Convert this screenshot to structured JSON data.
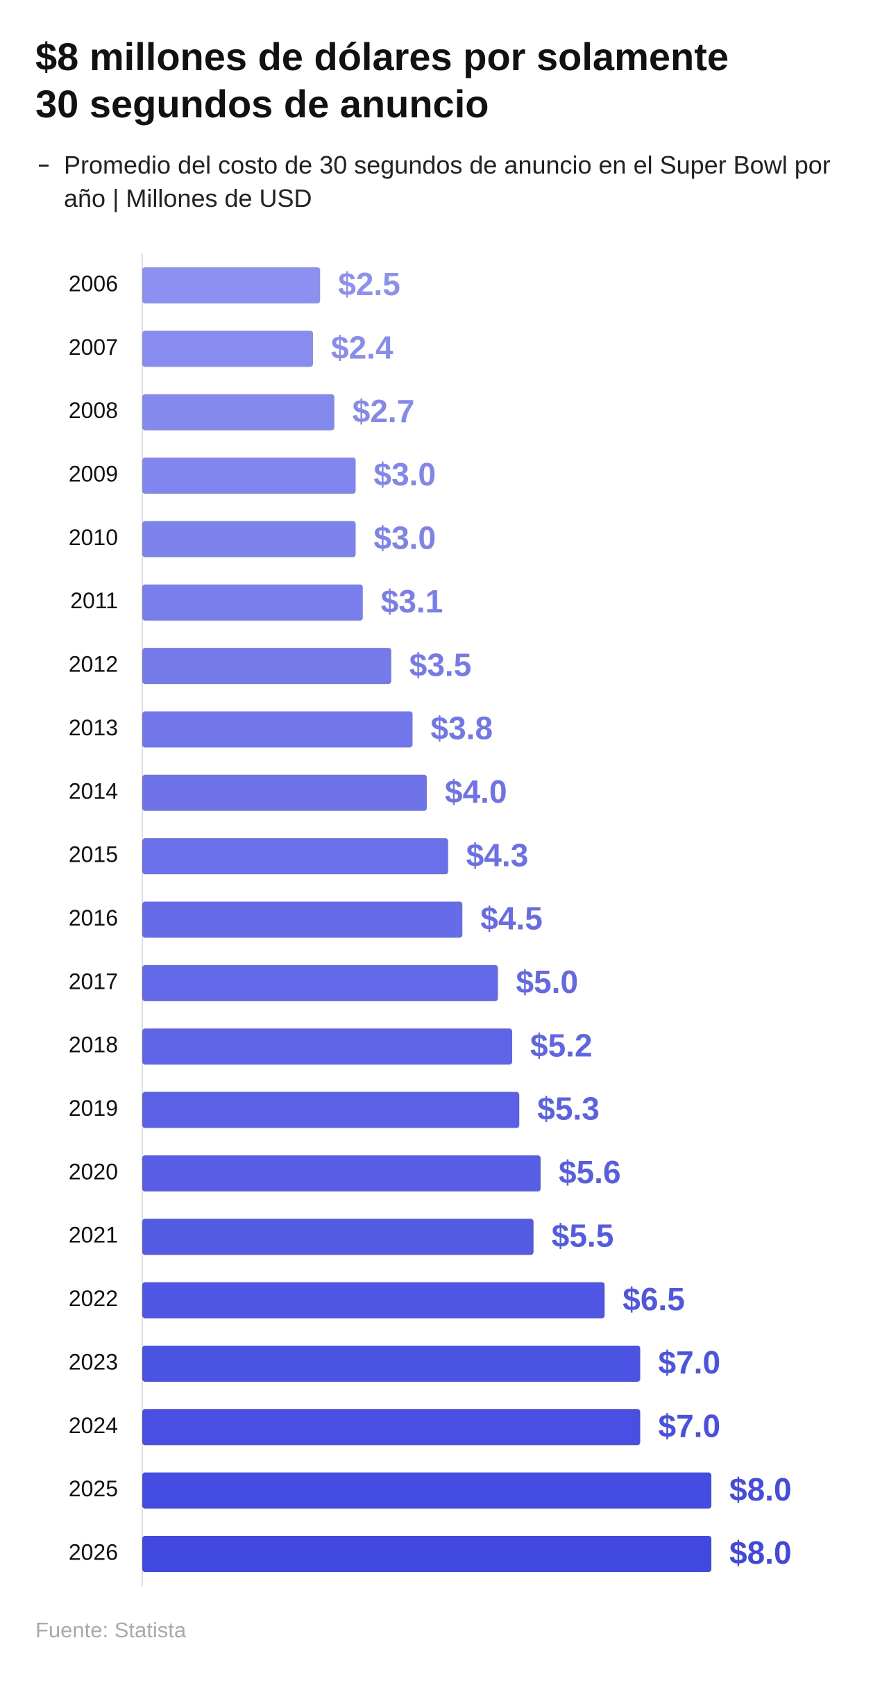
{
  "chart_data": {
    "type": "bar",
    "orientation": "horizontal",
    "title": [
      "$8 millones de dólares por solamente",
      "30 segundos de anuncio"
    ],
    "subtitle": "Promedio del costo de 30 segundos de anuncio en el Super Bowl por año | Millones de USD",
    "source": "Fuente: Statista",
    "categories": [
      "2006",
      "2007",
      "2008",
      "2009",
      "2010",
      "2011",
      "2012",
      "2013",
      "2014",
      "2015",
      "2016",
      "2017",
      "2018",
      "2019",
      "2020",
      "2021",
      "2022",
      "2023",
      "2024",
      "2025",
      "2026"
    ],
    "values": [
      2.5,
      2.4,
      2.7,
      3.0,
      3.0,
      3.1,
      3.5,
      3.8,
      4.0,
      4.3,
      4.5,
      5.0,
      5.2,
      5.3,
      5.6,
      5.5,
      6.5,
      7.0,
      7.0,
      8.0,
      8.0
    ],
    "value_labels": [
      "$2.5",
      "$2.4",
      "$2.7",
      "$3.0",
      "$3.0",
      "$3.1",
      "$3.5",
      "$3.8",
      "$4.0",
      "$4.3",
      "$4.5",
      "$5.0",
      "$5.2",
      "$5.3",
      "$5.6",
      "$5.5",
      "$6.5",
      "$7.0",
      "$7.0",
      "$8.0",
      "$8.0"
    ],
    "color_range": [
      "#8c90f0",
      "#4048e0"
    ],
    "xlim": [
      0,
      8
    ]
  }
}
